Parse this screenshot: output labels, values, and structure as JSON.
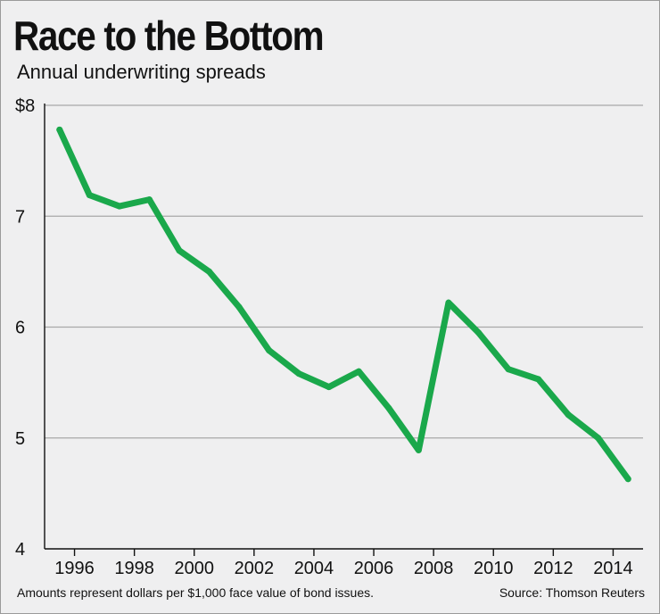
{
  "chart_data": {
    "type": "line",
    "title": "Race to the Bottom",
    "subtitle": "Annual underwriting spreads",
    "xlabel": "",
    "ylabel": "",
    "x": [
      1995,
      1996,
      1997,
      1998,
      1999,
      2000,
      2001,
      2002,
      2003,
      2004,
      2005,
      2006,
      2007,
      2008,
      2009,
      2010,
      2011,
      2012,
      2013,
      2014,
      2015
    ],
    "series": [
      {
        "values": [
          7.78,
          7.19,
          7.09,
          7.15,
          6.69,
          6.5,
          6.18,
          5.79,
          5.58,
          5.46,
          5.6,
          5.27,
          4.89,
          6.22,
          5.95,
          5.62,
          5.53,
          5.21,
          5.0,
          4.63
        ],
        "x": [
          1995.5,
          1996.5,
          1997.5,
          1998.5,
          1999.5,
          2000.5,
          2001.5,
          2002.5,
          2003.5,
          2004.5,
          2005.5,
          2006.5,
          2007.5,
          2008.5,
          2009.5,
          2010.5,
          2011.5,
          2012.5,
          2013.5,
          2014.5
        ]
      }
    ],
    "xlim": [
      1995,
      2015
    ],
    "ylim": [
      4,
      8
    ],
    "x_ticks": [
      "1996",
      "1998",
      "2000",
      "2002",
      "2004",
      "2006",
      "2008",
      "2010",
      "2012",
      "2014"
    ],
    "x_tick_values": [
      1996,
      1998,
      2000,
      2002,
      2004,
      2006,
      2008,
      2010,
      2012,
      2014
    ],
    "y_ticks": [
      "4",
      "5",
      "6",
      "7",
      "$8"
    ],
    "y_tick_values": [
      4,
      5,
      6,
      7,
      8
    ],
    "grid": true,
    "line_color": "#1aa84b",
    "grid_color": "#a8a8a8"
  },
  "footer": {
    "note": "Amounts represent dollars per $1,000 face value of bond issues.",
    "source": "Source: Thomson Reuters"
  }
}
